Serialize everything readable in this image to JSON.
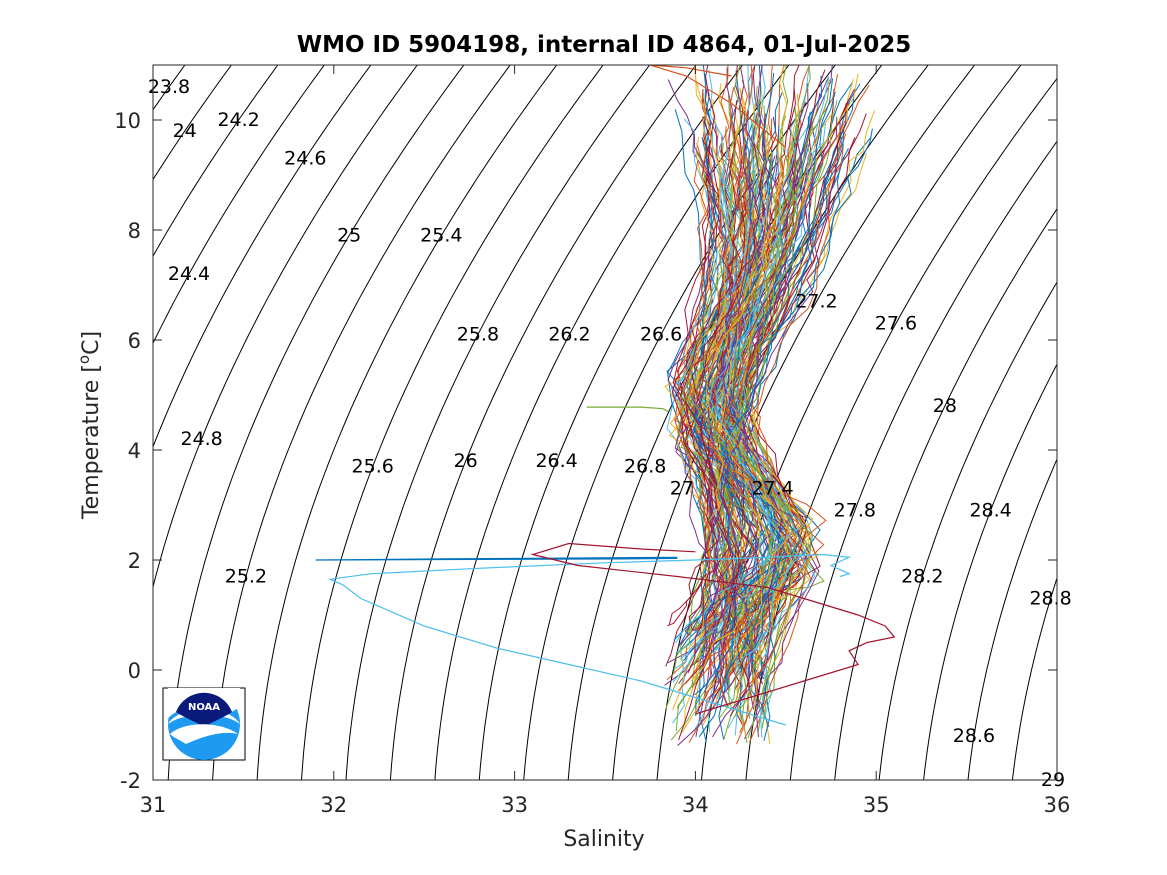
{
  "chart_data": {
    "type": "line",
    "title": "WMO ID 5904198, internal ID 4864, 01-Jul-2025",
    "xlabel": "Salinity",
    "ylabel_main": "Temperature [",
    "ylabel_sup": "o",
    "ylabel_end": "C]",
    "xlim": [
      31,
      36
    ],
    "ylim": [
      -2,
      11
    ],
    "x_ticks": [
      "31",
      "32",
      "33",
      "34",
      "35",
      "36"
    ],
    "y_ticks": [
      "-2",
      "0",
      "2",
      "4",
      "6",
      "8",
      "10"
    ],
    "grid": false,
    "isopycnals": {
      "sigma_min": 23.8,
      "sigma_max": 29,
      "step": 0.2,
      "labels": [
        {
          "text": "23.8",
          "sigma": 23.8,
          "T": 10.6
        },
        {
          "text": "24",
          "sigma": 24.0,
          "T": 9.8
        },
        {
          "text": "24.2",
          "sigma": 24.2,
          "T": 10.0
        },
        {
          "text": "24.4",
          "sigma": 24.4,
          "T": 7.2
        },
        {
          "text": "24.6",
          "sigma": 24.6,
          "T": 9.3
        },
        {
          "text": "24.8",
          "sigma": 24.8,
          "T": 4.2
        },
        {
          "text": "25",
          "sigma": 25.0,
          "T": 7.9
        },
        {
          "text": "25.2",
          "sigma": 25.2,
          "T": 1.7
        },
        {
          "text": "25.4",
          "sigma": 25.4,
          "T": 7.9
        },
        {
          "text": "25.6",
          "sigma": 25.6,
          "T": 3.7
        },
        {
          "text": "25.8",
          "sigma": 25.8,
          "T": 6.1
        },
        {
          "text": "26",
          "sigma": 26.0,
          "T": 3.8
        },
        {
          "text": "26.2",
          "sigma": 26.2,
          "T": 6.1
        },
        {
          "text": "26.4",
          "sigma": 26.4,
          "T": 3.8
        },
        {
          "text": "26.6",
          "sigma": 26.6,
          "T": 6.1
        },
        {
          "text": "26.8",
          "sigma": 26.8,
          "T": 3.7
        },
        {
          "text": "27",
          "sigma": 27.0,
          "T": 3.3
        },
        {
          "text": "27.2",
          "sigma": 27.2,
          "T": 6.7
        },
        {
          "text": "27.4",
          "sigma": 27.4,
          "T": 3.3
        },
        {
          "text": "27.6",
          "sigma": 27.6,
          "T": 6.3
        },
        {
          "text": "27.8",
          "sigma": 27.8,
          "T": 2.9
        },
        {
          "text": "28",
          "sigma": 28.0,
          "T": 4.8
        },
        {
          "text": "28.2",
          "sigma": 28.2,
          "T": 1.7
        },
        {
          "text": "28.4",
          "sigma": 28.4,
          "T": 2.9
        },
        {
          "text": "28.6",
          "sigma": 28.6,
          "T": -1.2
        },
        {
          "text": "28.8",
          "sigma": 28.8,
          "T": 1.3
        },
        {
          "text": "29",
          "sigma": 29.0,
          "T": -2.0
        }
      ]
    },
    "profiles": {
      "count": 180,
      "colors": [
        "#0072BD",
        "#D95319",
        "#EDB120",
        "#7E2F8E",
        "#77AC30",
        "#4DBEEE",
        "#A2142F"
      ],
      "salinity_range": [
        31.9,
        34.9
      ],
      "temperature_range": [
        -1.6,
        11
      ]
    },
    "highlight_profiles": [
      {
        "name": "cyan-outlier",
        "color": "#4DBEEE",
        "x": [
          34.5,
          34.3,
          34.0,
          33.7,
          33.3,
          32.9,
          32.5,
          32.15,
          32.05,
          31.98,
          32.2,
          32.8,
          33.5,
          34.0,
          34.4,
          34.7,
          34.85,
          34.75,
          34.85,
          34.8
        ],
        "y": [
          -1.0,
          -0.8,
          -0.5,
          -0.2,
          0.1,
          0.4,
          0.8,
          1.3,
          1.55,
          1.65,
          1.75,
          1.85,
          1.95,
          2.0,
          2.05,
          2.1,
          2.05,
          1.9,
          1.75,
          1.7
        ]
      },
      {
        "name": "blue-spike",
        "color": "#0072BD",
        "x": [
          33.9,
          32.6,
          31.9,
          32.6,
          33.6,
          33.9
        ],
        "y": [
          2.05,
          2.02,
          2.0,
          2.01,
          2.02,
          2.03
        ]
      },
      {
        "name": "green-spike",
        "color": "#77AC30",
        "x": [
          33.4,
          33.7,
          33.82,
          33.85
        ],
        "y": [
          4.78,
          4.78,
          4.75,
          4.7
        ]
      },
      {
        "name": "red-outlier",
        "color": "#A2142F",
        "x": [
          34.0,
          33.7,
          33.3,
          33.1,
          33.35,
          33.9,
          34.4,
          34.7,
          34.9,
          35.05,
          35.1,
          34.95,
          34.85,
          34.9,
          34.6,
          34.3,
          34.0
        ],
        "y": [
          2.15,
          2.2,
          2.3,
          2.1,
          1.9,
          1.7,
          1.5,
          1.2,
          1.0,
          0.8,
          0.6,
          0.5,
          0.35,
          0.1,
          -0.2,
          -0.5,
          -0.8
        ]
      },
      {
        "name": "orange-top",
        "color": "#D95319",
        "x": [
          34.5,
          34.2,
          33.95,
          33.8,
          33.75,
          33.95,
          34.2
        ],
        "y": [
          9.5,
          10.3,
          10.8,
          10.95,
          11.0,
          10.95,
          10.8
        ]
      }
    ]
  },
  "logo": {
    "text": "NOAA"
  }
}
